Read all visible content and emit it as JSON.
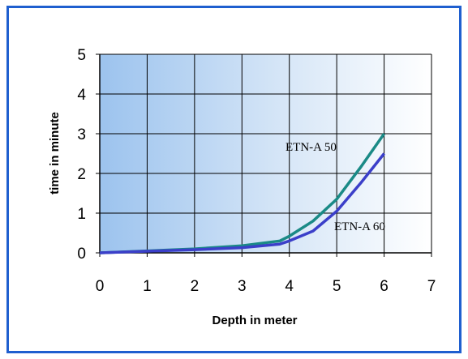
{
  "chart_data": {
    "type": "line",
    "xlabel": "Depth in meter",
    "ylabel": "time in minute",
    "xlim": [
      0,
      7
    ],
    "ylim": [
      0,
      5
    ],
    "x_ticks": [
      "0",
      "1",
      "2",
      "3",
      "4",
      "5",
      "6",
      "7"
    ],
    "y_ticks": [
      "0",
      "1",
      "2",
      "3",
      "4",
      "5"
    ],
    "grid": true,
    "series": [
      {
        "name": "ETN-A 50",
        "color": "#1a8a86",
        "x": [
          0,
          1,
          2,
          3,
          3.8,
          4,
          4.5,
          5,
          5.5,
          6
        ],
        "y": [
          0,
          0.05,
          0.1,
          0.18,
          0.3,
          0.42,
          0.8,
          1.35,
          2.15,
          3.0
        ]
      },
      {
        "name": "ETN-A 60",
        "color": "#3b3fc9",
        "x": [
          0,
          1,
          2,
          3,
          3.8,
          4,
          4.5,
          5,
          5.5,
          6
        ],
        "y": [
          0,
          0.04,
          0.08,
          0.13,
          0.22,
          0.3,
          0.55,
          1.05,
          1.75,
          2.5
        ]
      }
    ]
  }
}
